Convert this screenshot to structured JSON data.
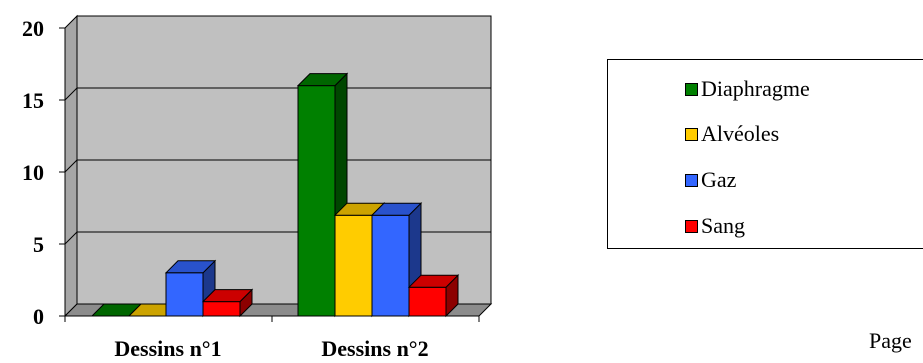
{
  "chart_data": {
    "type": "bar",
    "categories": [
      "Dessins n°1",
      "Dessins n°2"
    ],
    "series": [
      {
        "name": "Diaphragme",
        "color": "#008000",
        "values": [
          0,
          16
        ]
      },
      {
        "name": "Alvéoles",
        "color": "#FFCC00",
        "values": [
          0,
          7
        ]
      },
      {
        "name": "Gaz",
        "color": "#3366FF",
        "values": [
          3,
          7
        ]
      },
      {
        "name": "Sang",
        "color": "#FF0000",
        "values": [
          1,
          2
        ]
      }
    ],
    "ylim": [
      0,
      20
    ],
    "yticks": [
      "0",
      "5",
      "10",
      "15",
      "20"
    ],
    "grid": true,
    "legend_position": "right",
    "plot_background": "#C0C0C0"
  },
  "page_text": "Page"
}
